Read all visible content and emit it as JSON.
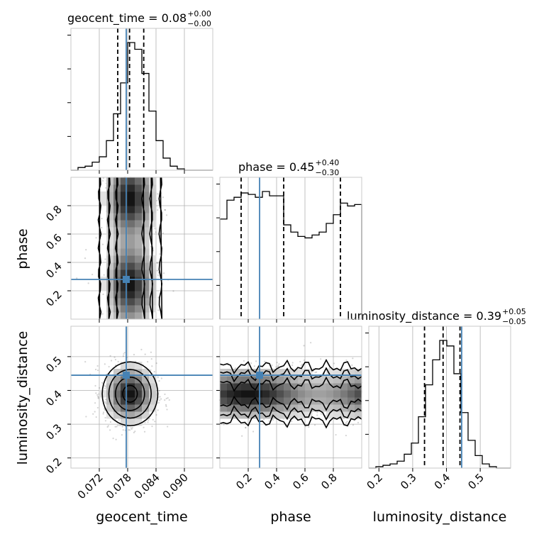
{
  "chart_data": {
    "type": "corner",
    "parameters": [
      "geocent_time",
      "phase",
      "luminosity_distance"
    ],
    "truth_color": "#4682b4",
    "panels": {
      "geocent_time": {
        "title": {
          "name": "geocent_time",
          "value": "0.08",
          "plus": "+0.00",
          "minus": "−0.00"
        },
        "range": [
          0.066,
          0.096
        ],
        "ticks": [
          0.072,
          0.078,
          0.084,
          0.09
        ],
        "tick_labels": [
          "0.072",
          "0.078",
          "0.084",
          "0.090"
        ],
        "truth": 0.0777,
        "quantiles": [
          0.0759,
          0.0784,
          0.0814
        ],
        "hist_edges": [
          0.066,
          0.0675,
          0.069,
          0.0705,
          0.072,
          0.0735,
          0.075,
          0.0765,
          0.078,
          0.0795,
          0.081,
          0.0825,
          0.084,
          0.0855,
          0.087,
          0.0885,
          0.09,
          0.0915,
          0.093,
          0.0945,
          0.096
        ],
        "hist_counts": [
          0,
          2,
          3,
          6,
          10,
          22,
          42,
          65,
          95,
          90,
          72,
          44,
          22,
          9,
          3,
          1,
          0,
          0,
          0,
          0
        ]
      },
      "phase": {
        "title": {
          "name": "phase",
          "value": "0.45",
          "plus": "+0.40",
          "minus": "−0.30"
        },
        "range": [
          0.0,
          1.0
        ],
        "ticks": [
          0.2,
          0.4,
          0.6,
          0.8
        ],
        "tick_labels": [
          "0.2",
          "0.4",
          "0.6",
          "0.8"
        ],
        "truth": 0.28,
        "quantiles": [
          0.15,
          0.45,
          0.85
        ],
        "hist_edges": [
          0.0,
          0.05,
          0.1,
          0.15,
          0.2,
          0.25,
          0.3,
          0.35,
          0.4,
          0.45,
          0.5,
          0.55,
          0.6,
          0.65,
          0.7,
          0.75,
          0.8,
          0.85,
          0.9,
          0.95,
          1.0
        ],
        "hist_counts": [
          69,
          82,
          84,
          87,
          86,
          84,
          88,
          85,
          85,
          65,
          60,
          57,
          56,
          58,
          60,
          66,
          72,
          80,
          78,
          79
        ]
      },
      "luminosity_distance": {
        "title": {
          "name": "luminosity_distance",
          "value": "0.39",
          "plus": "+0.05",
          "minus": "−0.05"
        },
        "range": [
          0.17,
          0.59
        ],
        "ticks": [
          0.2,
          0.3,
          0.4,
          0.5
        ],
        "tick_labels": [
          "0.2",
          "0.3",
          "0.4",
          "0.5"
        ],
        "truth": 0.445,
        "quantiles": [
          0.335,
          0.39,
          0.44
        ],
        "hist_edges": [
          0.17,
          0.191,
          0.212,
          0.233,
          0.254,
          0.275,
          0.296,
          0.317,
          0.338,
          0.359,
          0.38,
          0.401,
          0.422,
          0.443,
          0.464,
          0.485,
          0.506,
          0.527,
          0.548,
          0.569,
          0.59
        ],
        "hist_counts": [
          0,
          1,
          2,
          3,
          5,
          10,
          18,
          37,
          60,
          78,
          92,
          88,
          68,
          40,
          20,
          9,
          3,
          1,
          0,
          0
        ]
      }
    },
    "pairs": [
      {
        "x": "geocent_time",
        "y": "phase",
        "truth": [
          0.0777,
          0.28
        ],
        "mode": {
          "x_center": 0.0785,
          "y_centers": [
            0.25,
            0.85
          ],
          "x_width": 0.0028
        }
      },
      {
        "x": "geocent_time",
        "y": "luminosity_distance",
        "truth": [
          0.0777,
          0.445
        ],
        "mode": {
          "x_center": 0.0785,
          "y_center": 0.39,
          "x_width": 0.0028,
          "y_width": 0.045
        }
      },
      {
        "x": "phase",
        "y": "luminosity_distance",
        "truth": [
          0.28,
          0.445
        ],
        "mode": {
          "y_center": 0.39,
          "y_width": 0.04
        }
      }
    ],
    "grid": true
  }
}
